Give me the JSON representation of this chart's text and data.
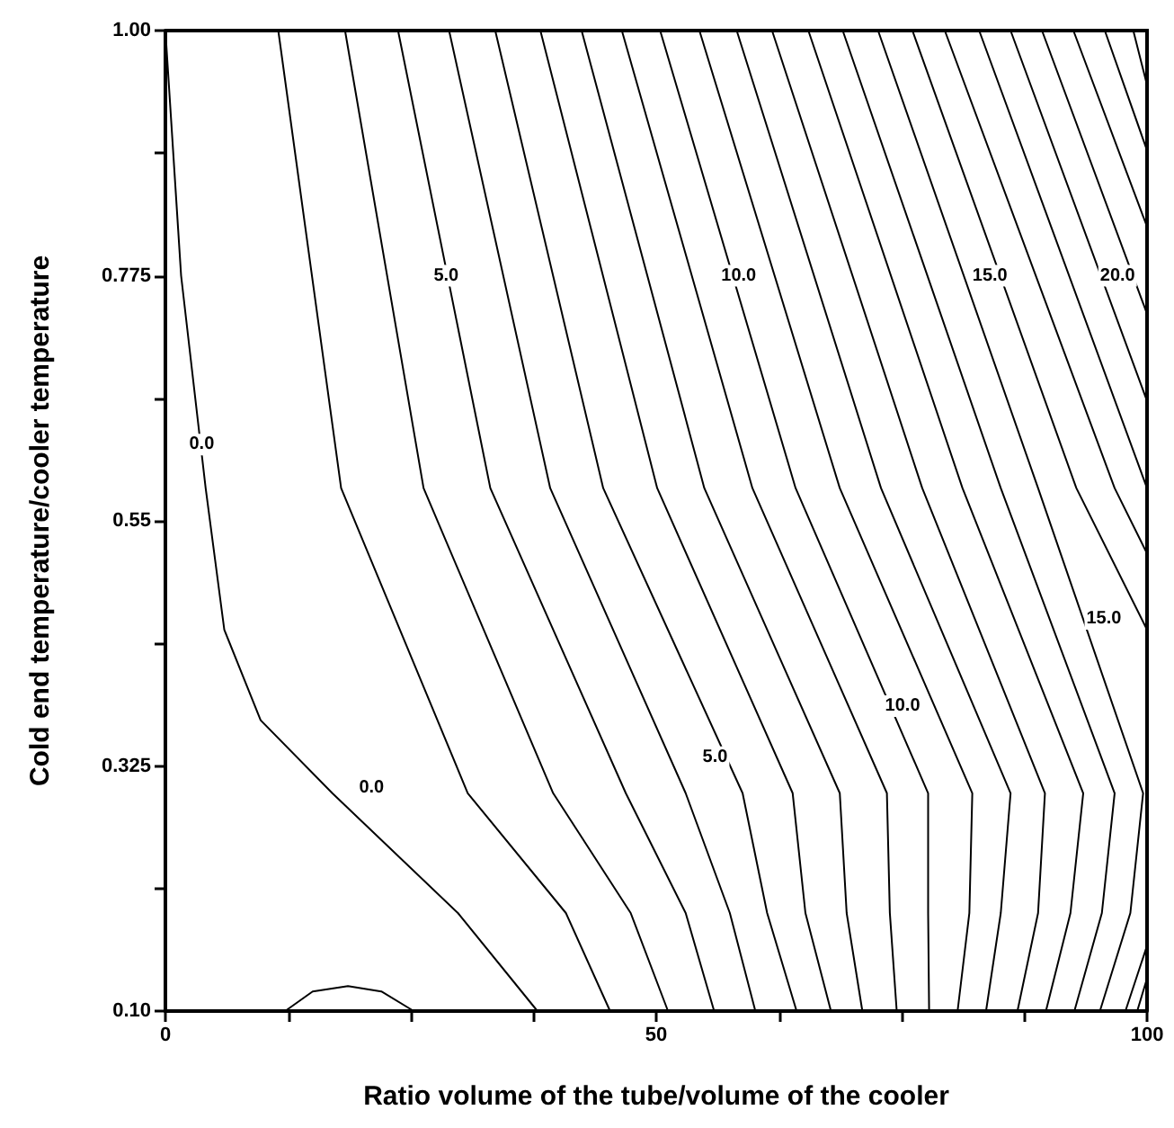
{
  "chart_data": {
    "type": "line",
    "xlabel": "Ratio volume of the tube/volume of the cooler",
    "ylabel": "Cold end temperature/cooler temperature",
    "xlim": [
      0,
      100
    ],
    "ylim": [
      0.1,
      1.0
    ],
    "xticks": [
      0,
      {
        "value": 12.5,
        "label": null
      },
      {
        "value": 25,
        "label": null
      },
      {
        "value": 37.5,
        "label": null
      },
      50,
      {
        "value": 62.5,
        "label": null
      },
      {
        "value": 75,
        "label": null
      },
      {
        "value": 87.5,
        "label": null
      },
      100
    ],
    "yticks": [
      {
        "value": 0.1,
        "label": "0.10"
      },
      {
        "value": 0.2125,
        "label": null
      },
      0.325,
      {
        "value": 0.4375,
        "label": null
      },
      0.55,
      {
        "value": 0.6625,
        "label": null
      },
      0.775,
      {
        "value": 0.8875,
        "label": null
      },
      {
        "value": 1.0,
        "label": "1.00"
      }
    ],
    "grid": false,
    "marker": "none",
    "line_style": "solid",
    "series": [
      {
        "color": "#000000",
        "x": [
          0,
          1.6,
          4.1,
          6,
          9.7,
          17,
          29.8,
          37.9
        ],
        "values": [
          1.0,
          0.775,
          0.58,
          0.45,
          0.367,
          0.3,
          0.19,
          0.1
        ]
      },
      {
        "color": "#000000",
        "x": [
          12.2,
          15,
          18.6,
          22,
          25.3
        ],
        "values": [
          0.1,
          0.118,
          0.123,
          0.118,
          0.1
        ]
      },
      {
        "color": "#000000",
        "x": [
          11.5,
          17.9,
          30.8,
          40.8,
          45.3
        ],
        "values": [
          1.0,
          0.58,
          0.3,
          0.19,
          0.1
        ]
      },
      {
        "color": "#000000",
        "x": [
          18.3,
          26.3,
          39.5,
          47.4,
          51.2
        ],
        "values": [
          1.0,
          0.58,
          0.3,
          0.19,
          0.1
        ]
      },
      {
        "color": "#000000",
        "x": [
          23.7,
          33.1,
          46.9,
          53,
          55.9
        ],
        "values": [
          1.0,
          0.58,
          0.3,
          0.19,
          0.1
        ]
      },
      {
        "color": "#000000",
        "x": [
          28.9,
          39.2,
          53,
          57.5,
          60.1
        ],
        "values": [
          1.0,
          0.58,
          0.3,
          0.19,
          0.1
        ]
      },
      {
        "color": "#000000",
        "x": [
          33.6,
          44.6,
          58.8,
          61.3,
          64.3
        ],
        "values": [
          1.0,
          0.58,
          0.3,
          0.19,
          0.1
        ]
      },
      {
        "color": "#000000",
        "x": [
          38.2,
          50.1,
          63.9,
          65.2,
          67.8
        ],
        "values": [
          1.0,
          0.58,
          0.3,
          0.19,
          0.1
        ]
      },
      {
        "color": "#000000",
        "x": [
          42.4,
          54.9,
          68.7,
          69.4,
          71
        ],
        "values": [
          1.0,
          0.58,
          0.3,
          0.19,
          0.1
        ]
      },
      {
        "color": "#000000",
        "x": [
          46.5,
          59.8,
          73.5,
          73.8,
          74.5
        ],
        "values": [
          1.0,
          0.58,
          0.3,
          0.19,
          0.1
        ]
      },
      {
        "color": "#000000",
        "x": [
          50.4,
          64.2,
          77.7,
          77.7,
          77.8
        ],
        "values": [
          1.0,
          0.58,
          0.3,
          0.19,
          0.1
        ]
      },
      {
        "color": "#000000",
        "x": [
          54.4,
          68.7,
          82.2,
          81.9,
          80.7
        ],
        "values": [
          1.0,
          0.58,
          0.3,
          0.19,
          0.1
        ]
      },
      {
        "color": "#000000",
        "x": [
          58.2,
          72.9,
          86.1,
          85.1,
          83.6
        ],
        "values": [
          1.0,
          0.58,
          0.3,
          0.19,
          0.1
        ]
      },
      {
        "color": "#000000",
        "x": [
          61.8,
          77.1,
          89.6,
          88.9,
          86.8
        ],
        "values": [
          1.0,
          0.58,
          0.3,
          0.19,
          0.1
        ]
      },
      {
        "color": "#000000",
        "x": [
          65.5,
          81.2,
          93.5,
          92.2,
          89.7
        ],
        "values": [
          1.0,
          0.58,
          0.3,
          0.19,
          0.1
        ]
      },
      {
        "color": "#000000",
        "x": [
          69,
          85.1,
          96.7,
          95.4,
          92.6
        ],
        "values": [
          1.0,
          0.58,
          0.3,
          0.19,
          0.1
        ]
      },
      {
        "color": "#000000",
        "x": [
          72.6,
          88.9,
          99.6,
          98.3,
          95.2
        ],
        "values": [
          1.0,
          0.58,
          0.3,
          0.19,
          0.1
        ]
      },
      {
        "color": "#000000",
        "x": [
          100,
          97.8
        ],
        "values": [
          0.16,
          0.1
        ]
      },
      {
        "color": "#000000",
        "x": [
          100,
          99
        ],
        "values": [
          0.13,
          0.1
        ]
      },
      {
        "color": "#000000",
        "x": [
          76.1,
          92.8,
          100
        ],
        "values": [
          1.0,
          0.58,
          0.45
        ]
      },
      {
        "color": "#000000",
        "x": [
          79.4,
          96.7,
          100
        ],
        "values": [
          1.0,
          0.58,
          0.52
        ]
      },
      {
        "color": "#000000",
        "x": [
          82.9,
          100
        ],
        "values": [
          1.0,
          0.58
        ]
      },
      {
        "color": "#000000",
        "x": [
          86.1,
          100
        ],
        "values": [
          1.0,
          0.66
        ]
      },
      {
        "color": "#000000",
        "x": [
          89.3,
          100
        ],
        "values": [
          1.0,
          0.74
        ]
      },
      {
        "color": "#000000",
        "x": [
          92.5,
          100
        ],
        "values": [
          1.0,
          0.82
        ]
      },
      {
        "color": "#000000",
        "x": [
          95.7,
          100
        ],
        "values": [
          1.0,
          0.89
        ]
      },
      {
        "color": "#000000",
        "x": [
          98.6,
          100
        ],
        "values": [
          1.0,
          0.95
        ]
      }
    ],
    "annotations": [
      {
        "text": "0.0",
        "x": 3.7,
        "y": 0.62
      },
      {
        "text": "5.0",
        "x": 28.6,
        "y": 0.775
      },
      {
        "text": "10.0",
        "x": 58.4,
        "y": 0.775
      },
      {
        "text": "15.0",
        "x": 84,
        "y": 0.775
      },
      {
        "text": "20.0",
        "x": 97,
        "y": 0.775
      },
      {
        "text": "0.0",
        "x": 21,
        "y": 0.305
      },
      {
        "text": "5.0",
        "x": 56,
        "y": 0.333
      },
      {
        "text": "10.0",
        "x": 75.1,
        "y": 0.38
      },
      {
        "text": "15.0",
        "x": 95.6,
        "y": 0.46
      }
    ]
  }
}
